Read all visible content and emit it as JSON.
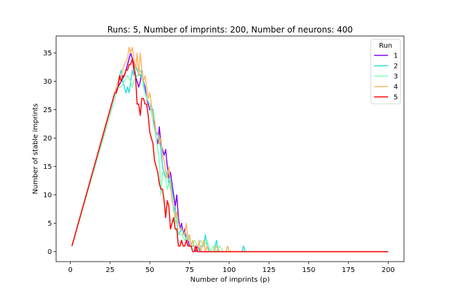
{
  "chart_data": {
    "type": "line",
    "title": "Runs: 5, Number of imprints: 200, Number of neurons: 400",
    "xlabel": "Number of imprints (p)",
    "ylabel": "Number of stable imprints",
    "xlim": [
      -8.95,
      209.95
    ],
    "ylim": [
      -1.75,
      38.0
    ],
    "xticks": [
      0,
      25,
      50,
      75,
      100,
      125,
      150,
      175,
      200
    ],
    "yticks": [
      0,
      5,
      10,
      15,
      20,
      25,
      30,
      35
    ],
    "legend": {
      "title": "Run",
      "position": "top-right"
    },
    "series": [
      {
        "name": "1",
        "color": "#8000ff",
        "points": [
          [
            1,
            1
          ],
          [
            28,
            28
          ],
          [
            30,
            29
          ],
          [
            32,
            30
          ],
          [
            34,
            31
          ],
          [
            36,
            33
          ],
          [
            38,
            35
          ],
          [
            40,
            33
          ],
          [
            41,
            31
          ],
          [
            42,
            30
          ],
          [
            43,
            29
          ],
          [
            44,
            30
          ],
          [
            45,
            32
          ],
          [
            46,
            30
          ],
          [
            47,
            29
          ],
          [
            48,
            27
          ],
          [
            49,
            26
          ],
          [
            50,
            25
          ],
          [
            52,
            25
          ],
          [
            53,
            22
          ],
          [
            54,
            20
          ],
          [
            55,
            19
          ],
          [
            56,
            22
          ],
          [
            57,
            19
          ],
          [
            58,
            18
          ],
          [
            59,
            17
          ],
          [
            60,
            18
          ],
          [
            61,
            15
          ],
          [
            62,
            13
          ],
          [
            63,
            14
          ],
          [
            64,
            12
          ],
          [
            65,
            10
          ],
          [
            66,
            8
          ],
          [
            67,
            10
          ],
          [
            68,
            6
          ],
          [
            69,
            4
          ],
          [
            70,
            5
          ],
          [
            71,
            3
          ],
          [
            72,
            4
          ],
          [
            73,
            2
          ],
          [
            74,
            2
          ],
          [
            75,
            1
          ],
          [
            76,
            1
          ],
          [
            78,
            1
          ],
          [
            79,
            0
          ],
          [
            80,
            1
          ],
          [
            82,
            0
          ],
          [
            200,
            0
          ]
        ]
      },
      {
        "name": "2",
        "color": "#2adddd",
        "points": [
          [
            1,
            1
          ],
          [
            28,
            28
          ],
          [
            30,
            30
          ],
          [
            32,
            32
          ],
          [
            33,
            30
          ],
          [
            34,
            29
          ],
          [
            35,
            28
          ],
          [
            36,
            29
          ],
          [
            37,
            28
          ],
          [
            38,
            30
          ],
          [
            39,
            32
          ],
          [
            40,
            31
          ],
          [
            41,
            33
          ],
          [
            42,
            32
          ],
          [
            44,
            31
          ],
          [
            46,
            30
          ],
          [
            47,
            28
          ],
          [
            48,
            27
          ],
          [
            50,
            26
          ],
          [
            52,
            25
          ],
          [
            53,
            23
          ],
          [
            54,
            21
          ],
          [
            56,
            20
          ],
          [
            57,
            18
          ],
          [
            58,
            15
          ],
          [
            59,
            14
          ],
          [
            60,
            13
          ],
          [
            61,
            14
          ],
          [
            62,
            12
          ],
          [
            63,
            13
          ],
          [
            64,
            11
          ],
          [
            65,
            7
          ],
          [
            66,
            8
          ],
          [
            67,
            5
          ],
          [
            68,
            3
          ],
          [
            70,
            4
          ],
          [
            72,
            3
          ],
          [
            74,
            1
          ],
          [
            76,
            1
          ],
          [
            78,
            1
          ],
          [
            80,
            0
          ],
          [
            82,
            1
          ],
          [
            84,
            1
          ],
          [
            85,
            3
          ],
          [
            86,
            1
          ],
          [
            88,
            0
          ],
          [
            90,
            0
          ],
          [
            92,
            2
          ],
          [
            93,
            0
          ],
          [
            108,
            0
          ],
          [
            109,
            1
          ],
          [
            110,
            0
          ],
          [
            200,
            0
          ]
        ]
      },
      {
        "name": "3",
        "color": "#80ffb4",
        "points": [
          [
            1,
            1
          ],
          [
            28,
            27
          ],
          [
            30,
            29
          ],
          [
            32,
            29
          ],
          [
            34,
            30
          ],
          [
            36,
            31
          ],
          [
            38,
            30
          ],
          [
            39,
            29
          ],
          [
            40,
            30
          ],
          [
            42,
            31
          ],
          [
            44,
            32
          ],
          [
            45,
            31
          ],
          [
            46,
            29
          ],
          [
            48,
            27
          ],
          [
            50,
            26
          ],
          [
            52,
            23
          ],
          [
            54,
            20
          ],
          [
            55,
            18
          ],
          [
            56,
            16
          ],
          [
            57,
            10
          ],
          [
            58,
            14
          ],
          [
            60,
            13
          ],
          [
            61,
            11
          ],
          [
            62,
            12
          ],
          [
            64,
            10
          ],
          [
            65,
            8
          ],
          [
            66,
            5
          ],
          [
            67,
            6
          ],
          [
            68,
            3
          ],
          [
            70,
            3
          ],
          [
            72,
            2
          ],
          [
            74,
            3
          ],
          [
            76,
            1
          ],
          [
            78,
            2
          ],
          [
            80,
            1
          ],
          [
            82,
            2
          ],
          [
            84,
            1
          ],
          [
            86,
            2
          ],
          [
            88,
            0
          ],
          [
            90,
            1
          ],
          [
            92,
            0
          ],
          [
            94,
            1
          ],
          [
            96,
            0
          ],
          [
            200,
            0
          ]
        ]
      },
      {
        "name": "4",
        "color": "#ffb360",
        "points": [
          [
            1,
            1
          ],
          [
            28,
            28
          ],
          [
            30,
            30
          ],
          [
            32,
            31
          ],
          [
            34,
            33
          ],
          [
            36,
            34
          ],
          [
            37,
            36
          ],
          [
            38,
            35
          ],
          [
            39,
            36
          ],
          [
            40,
            34
          ],
          [
            41,
            32
          ],
          [
            42,
            35
          ],
          [
            43,
            31
          ],
          [
            44,
            35
          ],
          [
            45,
            32
          ],
          [
            46,
            30
          ],
          [
            47,
            31
          ],
          [
            48,
            29
          ],
          [
            49,
            27
          ],
          [
            50,
            28
          ],
          [
            51,
            26
          ],
          [
            52,
            24
          ],
          [
            53,
            23
          ],
          [
            54,
            21
          ],
          [
            55,
            21
          ],
          [
            56,
            19
          ],
          [
            57,
            20
          ],
          [
            58,
            17
          ],
          [
            59,
            16
          ],
          [
            60,
            14
          ],
          [
            61,
            13
          ],
          [
            62,
            15
          ],
          [
            63,
            12
          ],
          [
            64,
            9
          ],
          [
            65,
            8
          ],
          [
            66,
            6
          ],
          [
            67,
            7
          ],
          [
            68,
            5
          ],
          [
            69,
            4
          ],
          [
            70,
            4
          ],
          [
            71,
            3
          ],
          [
            72,
            3
          ],
          [
            73,
            5
          ],
          [
            74,
            2
          ],
          [
            75,
            3
          ],
          [
            76,
            1
          ],
          [
            77,
            2
          ],
          [
            78,
            1
          ],
          [
            80,
            0
          ],
          [
            81,
            2
          ],
          [
            82,
            0
          ],
          [
            84,
            2
          ],
          [
            85,
            0
          ],
          [
            86,
            1
          ],
          [
            87,
            0
          ],
          [
            90,
            0
          ],
          [
            92,
            1
          ],
          [
            94,
            0
          ],
          [
            98,
            0
          ],
          [
            99,
            1
          ],
          [
            100,
            0
          ],
          [
            200,
            0
          ]
        ]
      },
      {
        "name": "5",
        "color": "#ff0000",
        "points": [
          [
            1,
            1
          ],
          [
            28,
            28
          ],
          [
            29,
            28
          ],
          [
            30,
            29
          ],
          [
            31,
            31
          ],
          [
            32,
            30
          ],
          [
            33,
            31
          ],
          [
            34,
            31
          ],
          [
            35,
            32
          ],
          [
            36,
            32
          ],
          [
            37,
            33
          ],
          [
            38,
            33
          ],
          [
            39,
            34
          ],
          [
            40,
            32
          ],
          [
            41,
            31
          ],
          [
            42,
            26
          ],
          [
            43,
            26
          ],
          [
            44,
            24
          ],
          [
            45,
            27
          ],
          [
            46,
            27
          ],
          [
            47,
            26
          ],
          [
            48,
            26
          ],
          [
            49,
            24
          ],
          [
            50,
            21
          ],
          [
            51,
            20
          ],
          [
            52,
            19
          ],
          [
            53,
            16
          ],
          [
            54,
            15
          ],
          [
            55,
            14
          ],
          [
            56,
            12
          ],
          [
            57,
            11
          ],
          [
            58,
            11
          ],
          [
            59,
            9
          ],
          [
            60,
            6
          ],
          [
            61,
            9
          ],
          [
            62,
            8
          ],
          [
            63,
            4
          ],
          [
            64,
            5
          ],
          [
            65,
            6
          ],
          [
            66,
            4
          ],
          [
            67,
            4
          ],
          [
            68,
            1
          ],
          [
            69,
            1
          ],
          [
            70,
            2
          ],
          [
            71,
            1
          ],
          [
            72,
            1
          ],
          [
            73,
            2
          ],
          [
            74,
            1
          ],
          [
            75,
            1
          ],
          [
            76,
            1
          ],
          [
            77,
            0
          ],
          [
            78,
            0
          ],
          [
            79,
            1
          ],
          [
            80,
            0
          ],
          [
            200,
            0
          ]
        ]
      }
    ]
  }
}
